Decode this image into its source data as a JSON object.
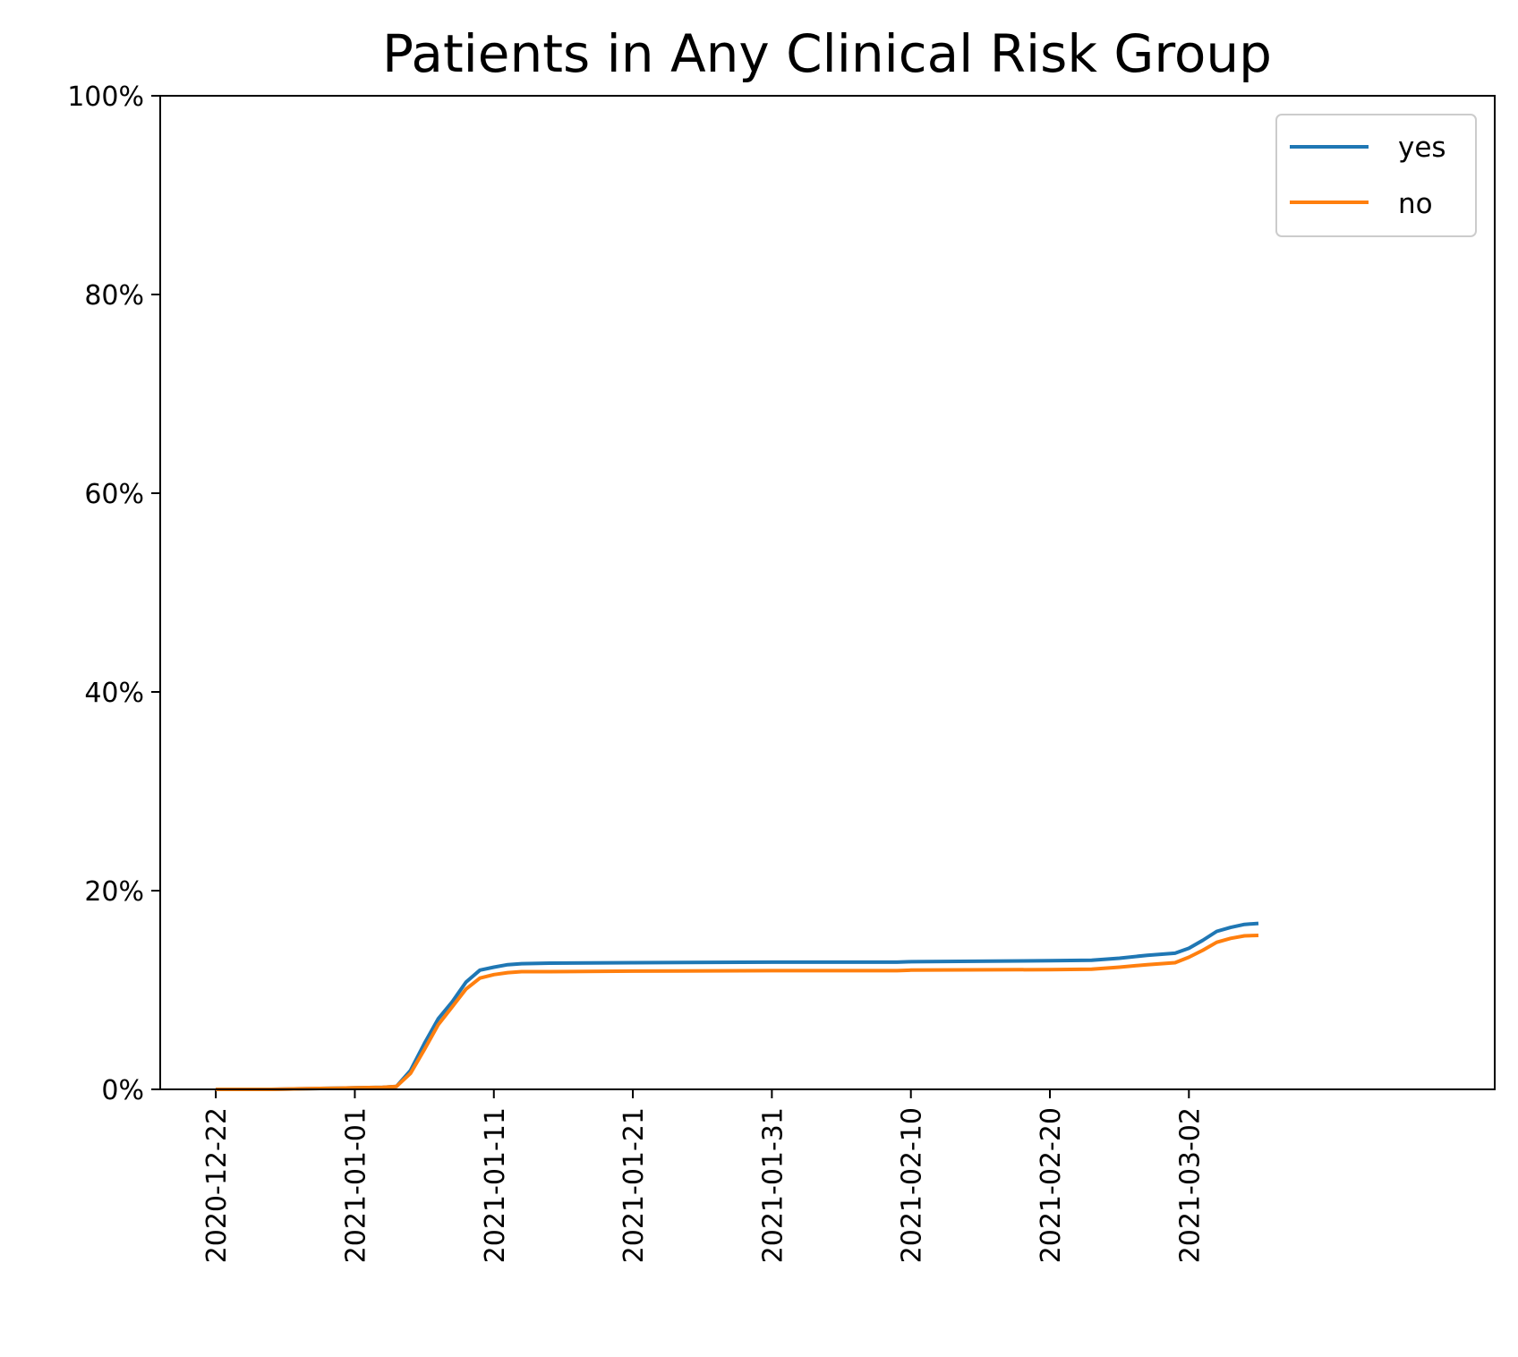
{
  "chart_data": {
    "type": "line",
    "title": "Patients in Any Clinical Risk Group",
    "xlabel": "",
    "ylabel": "",
    "ylim": [
      0,
      100
    ],
    "xlim": [
      "2020-12-18",
      "2021-03-24"
    ],
    "y_unit": "%",
    "y_ticks": [
      "0%",
      "20%",
      "40%",
      "60%",
      "80%",
      "100%"
    ],
    "x_ticks": [
      "2020-12-22",
      "2021-01-01",
      "2021-01-11",
      "2021-01-21",
      "2021-01-31",
      "2021-02-10",
      "2021-02-20",
      "2021-03-02"
    ],
    "grid": false,
    "legend_position": "top-right",
    "series": [
      {
        "name": "yes",
        "color": "#1f77b4",
        "points": [
          [
            "2020-12-22",
            0.0
          ],
          [
            "2020-12-24",
            0.0
          ],
          [
            "2020-12-26",
            0.0
          ],
          [
            "2020-12-28",
            0.05
          ],
          [
            "2020-12-30",
            0.1
          ],
          [
            "2021-01-01",
            0.15
          ],
          [
            "2021-01-03",
            0.2
          ],
          [
            "2021-01-04",
            0.3
          ],
          [
            "2021-01-05",
            1.9
          ],
          [
            "2021-01-06",
            4.6
          ],
          [
            "2021-01-07",
            7.1
          ],
          [
            "2021-01-08",
            8.8
          ],
          [
            "2021-01-09",
            10.8
          ],
          [
            "2021-01-10",
            12.0
          ],
          [
            "2021-01-11",
            12.3
          ],
          [
            "2021-01-12",
            12.55
          ],
          [
            "2021-01-13",
            12.65
          ],
          [
            "2021-01-15",
            12.7
          ],
          [
            "2021-01-21",
            12.75
          ],
          [
            "2021-01-31",
            12.8
          ],
          [
            "2021-02-09",
            12.8
          ],
          [
            "2021-02-10",
            12.85
          ],
          [
            "2021-02-20",
            12.95
          ],
          [
            "2021-02-23",
            13.0
          ],
          [
            "2021-02-25",
            13.2
          ],
          [
            "2021-02-27",
            13.5
          ],
          [
            "2021-03-01",
            13.7
          ],
          [
            "2021-03-02",
            14.2
          ],
          [
            "2021-03-03",
            15.0
          ],
          [
            "2021-03-04",
            15.9
          ],
          [
            "2021-03-05",
            16.3
          ],
          [
            "2021-03-06",
            16.6
          ],
          [
            "2021-03-07",
            16.7
          ]
        ]
      },
      {
        "name": "no",
        "color": "#ff7f0e",
        "points": [
          [
            "2020-12-22",
            0.0
          ],
          [
            "2020-12-24",
            0.0
          ],
          [
            "2020-12-26",
            0.0
          ],
          [
            "2020-12-28",
            0.05
          ],
          [
            "2020-12-30",
            0.1
          ],
          [
            "2021-01-01",
            0.15
          ],
          [
            "2021-01-03",
            0.2
          ],
          [
            "2021-01-04",
            0.3
          ],
          [
            "2021-01-05",
            1.6
          ],
          [
            "2021-01-06",
            4.0
          ],
          [
            "2021-01-07",
            6.5
          ],
          [
            "2021-01-08",
            8.3
          ],
          [
            "2021-01-09",
            10.1
          ],
          [
            "2021-01-10",
            11.2
          ],
          [
            "2021-01-11",
            11.55
          ],
          [
            "2021-01-12",
            11.75
          ],
          [
            "2021-01-13",
            11.85
          ],
          [
            "2021-01-15",
            11.85
          ],
          [
            "2021-01-21",
            11.9
          ],
          [
            "2021-01-31",
            11.95
          ],
          [
            "2021-02-09",
            11.95
          ],
          [
            "2021-02-10",
            12.0
          ],
          [
            "2021-02-20",
            12.05
          ],
          [
            "2021-02-23",
            12.1
          ],
          [
            "2021-02-25",
            12.3
          ],
          [
            "2021-02-27",
            12.55
          ],
          [
            "2021-03-01",
            12.75
          ],
          [
            "2021-03-02",
            13.3
          ],
          [
            "2021-03-03",
            14.0
          ],
          [
            "2021-03-04",
            14.8
          ],
          [
            "2021-03-05",
            15.2
          ],
          [
            "2021-03-06",
            15.45
          ],
          [
            "2021-03-07",
            15.5
          ]
        ]
      }
    ]
  }
}
